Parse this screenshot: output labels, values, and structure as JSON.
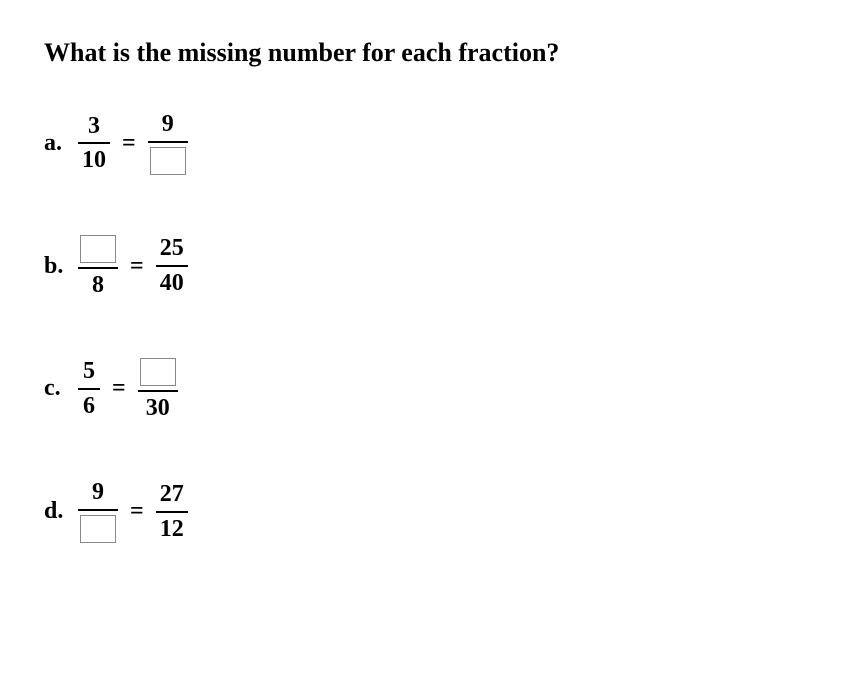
{
  "title": "What is the missing number for each fraction?",
  "problems": [
    {
      "label": "a.",
      "left": {
        "num": "3",
        "den": "10",
        "numBlank": false,
        "denBlank": false
      },
      "right": {
        "num": "9",
        "den": "",
        "numBlank": false,
        "denBlank": true
      }
    },
    {
      "label": "b.",
      "left": {
        "num": "",
        "den": "8",
        "numBlank": true,
        "denBlank": false
      },
      "right": {
        "num": "25",
        "den": "40",
        "numBlank": false,
        "denBlank": false
      }
    },
    {
      "label": "c.",
      "left": {
        "num": "5",
        "den": "6",
        "numBlank": false,
        "denBlank": false
      },
      "right": {
        "num": "",
        "den": "30",
        "numBlank": true,
        "denBlank": false
      }
    },
    {
      "label": "d.",
      "left": {
        "num": "9",
        "den": "",
        "numBlank": false,
        "denBlank": true
      },
      "right": {
        "num": "27",
        "den": "12",
        "numBlank": false,
        "denBlank": false
      }
    }
  ],
  "equalsSign": "=",
  "style": {
    "fontFamily": "Times New Roman",
    "titleFontSize": 26,
    "bodyFontSize": 24,
    "textColor": "#000000",
    "backgroundColor": "#ffffff",
    "blankBorderColor": "#888888",
    "blankWidth": 36,
    "blankHeight": 28
  }
}
